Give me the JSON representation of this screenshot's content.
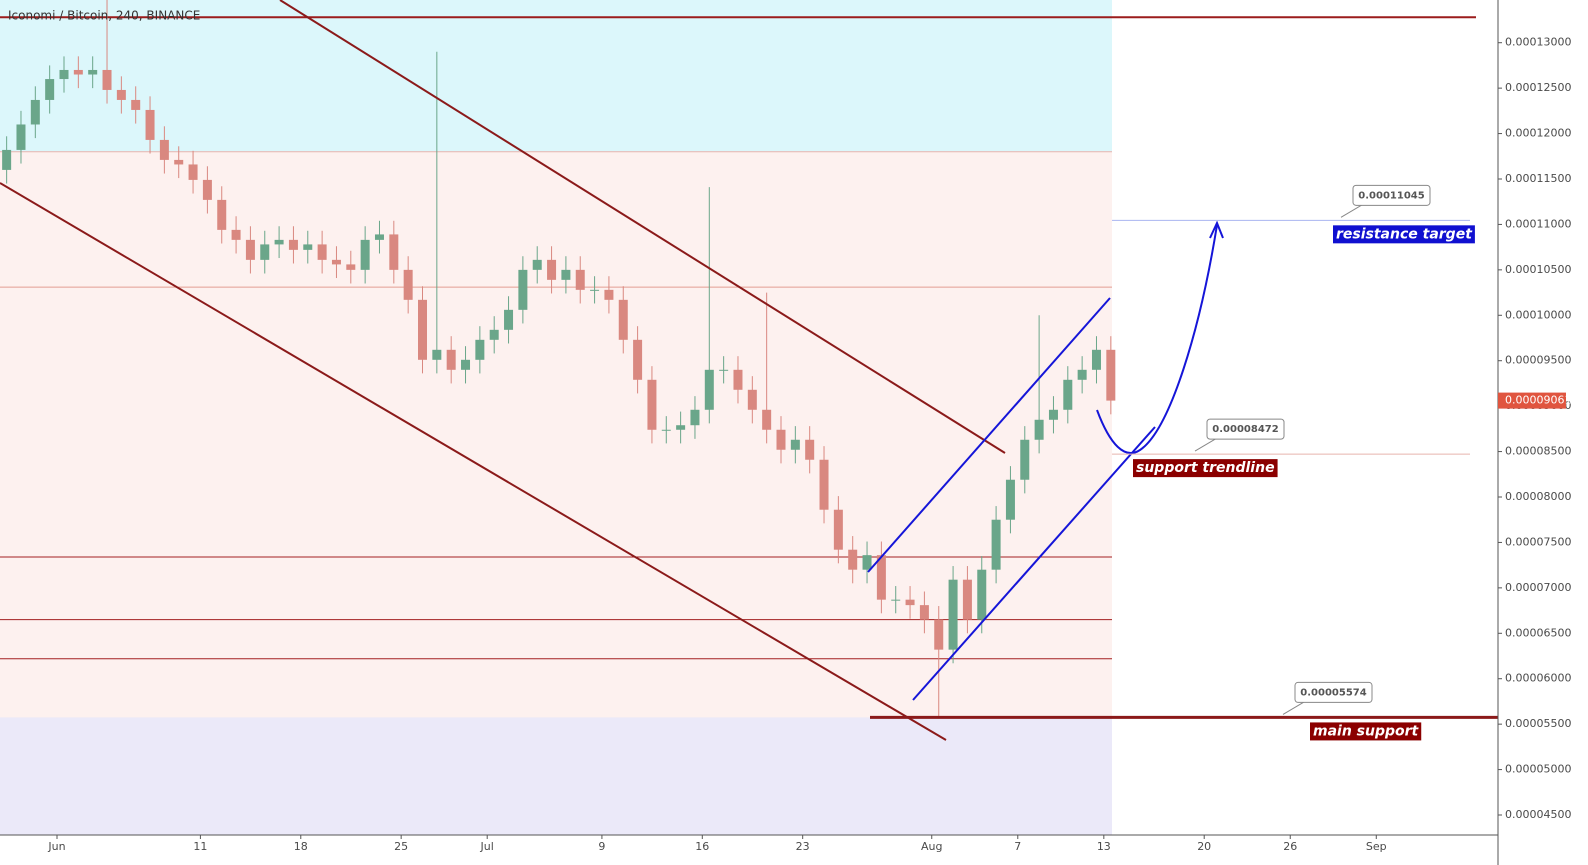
{
  "chart_data": {
    "type": "candlestick",
    "title": "Iconomi / Bitcoin, 240, BINANCE",
    "x": [
      "05-28",
      "05-29",
      "05-30",
      "05-31",
      "06-01",
      "06-02",
      "06-03",
      "06-04",
      "06-05",
      "06-06",
      "06-07",
      "06-08",
      "06-09",
      "06-10",
      "06-11",
      "06-12",
      "06-13",
      "06-14",
      "06-15",
      "06-16",
      "06-17",
      "06-18",
      "06-19",
      "06-20",
      "06-21",
      "06-22",
      "06-23",
      "06-24",
      "06-25",
      "06-26",
      "06-27",
      "06-28",
      "06-29",
      "06-30",
      "07-01",
      "07-02",
      "07-03",
      "07-04",
      "07-05",
      "07-06",
      "07-07",
      "07-08",
      "07-09",
      "07-10",
      "07-11",
      "07-12",
      "07-13",
      "07-14",
      "07-15",
      "07-16",
      "07-17",
      "07-18",
      "07-19",
      "07-20",
      "07-21",
      "07-22",
      "07-23",
      "07-24",
      "07-25",
      "07-26",
      "07-27",
      "07-28",
      "07-29",
      "07-30",
      "07-31",
      "08-01",
      "08-02",
      "08-03",
      "08-04",
      "08-05",
      "08-06",
      "08-07",
      "08-08",
      "08-09",
      "08-10",
      "08-11",
      "08-12",
      "08-13"
    ],
    "open": [
      0.000116,
      0.0001182,
      0.000121,
      0.0001237,
      0.000126,
      0.000127,
      0.0001265,
      0.000127,
      0.0001248,
      0.0001237,
      0.0001226,
      0.0001193,
      0.0001171,
      0.0001166,
      0.0001149,
      0.0001127,
      0.0001094,
      0.0001083,
      0.0001061,
      0.0001078,
      0.0001083,
      0.0001072,
      0.0001078,
      0.0001061,
      0.0001056,
      0.000105,
      0.0001083,
      0.0001089,
      0.000105,
      0.0001017,
      9.51e-05,
      9.62e-05,
      9.4e-05,
      9.51e-05,
      9.73e-05,
      9.84e-05,
      0.0001006,
      0.000105,
      0.0001061,
      0.0001039,
      0.000105,
      0.0001028,
      0.0001028,
      0.0001017,
      9.73e-05,
      9.29e-05,
      8.74e-05,
      8.74e-05,
      8.79e-05,
      8.96e-05,
      9.4e-05,
      9.4e-05,
      9.18e-05,
      8.96e-05,
      8.74e-05,
      8.52e-05,
      8.63e-05,
      8.41e-05,
      7.86e-05,
      7.42e-05,
      7.2e-05,
      7.36e-05,
      6.87e-05,
      6.87e-05,
      6.81e-05,
      6.65e-05,
      6.32e-05,
      7.09e-05,
      6.65e-05,
      7.2e-05,
      7.75e-05,
      8.19e-05,
      8.63e-05,
      8.85e-05,
      8.96e-05,
      9.29e-05,
      9.4e-05,
      9.62e-05
    ],
    "high": [
      0.0001197,
      0.0001225,
      0.0001252,
      0.0001275,
      0.0001285,
      0.0001285,
      0.0001285,
      0.0001347,
      0.0001263,
      0.0001252,
      0.0001241,
      0.0001208,
      0.0001186,
      0.0001181,
      0.0001164,
      0.0001142,
      0.0001109,
      0.0001098,
      0.0001093,
      0.0001098,
      0.0001098,
      0.0001093,
      0.0001093,
      0.0001076,
      0.0001071,
      0.0001098,
      0.0001104,
      0.0001104,
      0.0001065,
      0.0001032,
      0.000129,
      9.77e-05,
      9.66e-05,
      9.88e-05,
      9.99e-05,
      0.0001021,
      0.0001065,
      0.0001076,
      0.0001076,
      0.0001065,
      0.0001065,
      0.0001043,
      0.0001043,
      0.0001032,
      9.88e-05,
      9.44e-05,
      8.89e-05,
      8.94e-05,
      9.11e-05,
      0.0001141,
      9.55e-05,
      9.55e-05,
      9.33e-05,
      0.0001025,
      8.89e-05,
      8.78e-05,
      8.78e-05,
      8.56e-05,
      8.01e-05,
      7.57e-05,
      7.51e-05,
      7.51e-05,
      7.02e-05,
      7.02e-05,
      6.96e-05,
      6.8e-05,
      7.24e-05,
      7.24e-05,
      7.35e-05,
      7.9e-05,
      8.34e-05,
      8.78e-05,
      0.0001,
      9.11e-05,
      9.44e-05,
      9.55e-05,
      9.77e-05,
      9.77e-05
    ],
    "low": [
      0.0001145,
      0.0001167,
      0.0001195,
      0.0001222,
      0.0001245,
      0.000125,
      0.000125,
      0.0001233,
      0.0001222,
      0.0001211,
      0.0001178,
      0.0001156,
      0.0001151,
      0.0001134,
      0.0001112,
      0.0001079,
      0.0001068,
      0.0001046,
      0.0001046,
      0.0001063,
      0.0001057,
      0.0001057,
      0.0001046,
      0.0001041,
      0.0001035,
      0.0001035,
      0.0001068,
      0.0001035,
      0.0001002,
      9.36e-05,
      9.36e-05,
      9.25e-05,
      9.25e-05,
      9.36e-05,
      9.58e-05,
      9.69e-05,
      9.91e-05,
      0.0001035,
      0.0001024,
      0.0001024,
      0.0001013,
      0.0001013,
      0.0001002,
      9.58e-05,
      9.14e-05,
      8.59e-05,
      8.59e-05,
      8.59e-05,
      8.64e-05,
      8.81e-05,
      9.25e-05,
      9.03e-05,
      8.81e-05,
      8.59e-05,
      8.37e-05,
      8.37e-05,
      8.26e-05,
      7.71e-05,
      7.27e-05,
      7.05e-05,
      7.05e-05,
      6.72e-05,
      6.72e-05,
      6.66e-05,
      6.5e-05,
      5.57e-05,
      6.17e-05,
      6.5e-05,
      6.5e-05,
      7.05e-05,
      7.6e-05,
      8.04e-05,
      8.48e-05,
      8.7e-05,
      8.81e-05,
      9.14e-05,
      9.25e-05,
      8.91e-05
    ],
    "close": [
      0.0001182,
      0.000121,
      0.0001237,
      0.000126,
      0.000127,
      0.0001265,
      0.000127,
      0.0001248,
      0.0001237,
      0.0001226,
      0.0001193,
      0.0001171,
      0.0001166,
      0.0001149,
      0.0001127,
      0.0001094,
      0.0001083,
      0.0001061,
      0.0001078,
      0.0001083,
      0.0001072,
      0.0001078,
      0.0001061,
      0.0001056,
      0.000105,
      0.0001083,
      0.0001089,
      0.000105,
      0.0001017,
      9.51e-05,
      9.62e-05,
      9.4e-05,
      9.51e-05,
      9.73e-05,
      9.84e-05,
      0.0001006,
      0.000105,
      0.0001061,
      0.0001039,
      0.000105,
      0.0001028,
      0.0001028,
      0.0001017,
      9.73e-05,
      9.29e-05,
      8.74e-05,
      8.74e-05,
      8.79e-05,
      8.96e-05,
      9.4e-05,
      9.4e-05,
      9.18e-05,
      8.96e-05,
      8.74e-05,
      8.52e-05,
      8.63e-05,
      8.41e-05,
      7.86e-05,
      7.42e-05,
      7.2e-05,
      7.36e-05,
      6.87e-05,
      6.87e-05,
      6.81e-05,
      6.65e-05,
      6.32e-05,
      7.09e-05,
      6.65e-05,
      7.2e-05,
      7.75e-05,
      8.19e-05,
      8.63e-05,
      8.85e-05,
      8.96e-05,
      9.29e-05,
      9.4e-05,
      9.62e-05,
      9.061e-05
    ],
    "up_color": "#6aa68a",
    "down_color": "#d98880",
    "ylim": [
      4.28e-05,
      0.0001347
    ],
    "yticks": [
      {
        "value": 4.5e-05,
        "label": "0.00004500"
      },
      {
        "value": 5e-05,
        "label": "0.00005000"
      },
      {
        "value": 5.5e-05,
        "label": "0.00005500"
      },
      {
        "value": 6e-05,
        "label": "0.00006000"
      },
      {
        "value": 6.5e-05,
        "label": "0.00006500"
      },
      {
        "value": 7e-05,
        "label": "0.00007000"
      },
      {
        "value": 7.5e-05,
        "label": "0.00007500"
      },
      {
        "value": 8e-05,
        "label": "0.00008000"
      },
      {
        "value": 8.5e-05,
        "label": "0.00008500"
      },
      {
        "value": 9e-05,
        "label": "0.00009000"
      },
      {
        "value": 9.5e-05,
        "label": "0.00009500"
      },
      {
        "value": 0.0001,
        "label": "0.00010000"
      },
      {
        "value": 0.000105,
        "label": "0.00010500"
      },
      {
        "value": 0.00011,
        "label": "0.00011000"
      },
      {
        "value": 0.000115,
        "label": "0.00011500"
      },
      {
        "value": 0.00012,
        "label": "0.00012000"
      },
      {
        "value": 0.000125,
        "label": "0.00012500"
      },
      {
        "value": 0.00013,
        "label": "0.00013000"
      }
    ],
    "xticks": [
      {
        "value": "06-01",
        "label": "Jun"
      },
      {
        "value": "06-11",
        "label": "11"
      },
      {
        "value": "06-18",
        "label": "18"
      },
      {
        "value": "06-25",
        "label": "25"
      },
      {
        "value": "07-01",
        "label": "Jul"
      },
      {
        "value": "07-09",
        "label": "9"
      },
      {
        "value": "07-16",
        "label": "16"
      },
      {
        "value": "07-23",
        "label": "23"
      },
      {
        "value": "08-01",
        "label": "Aug"
      },
      {
        "value": "08-07",
        "label": "7"
      },
      {
        "value": "08-13",
        "label": "13"
      },
      {
        "value": "08-20",
        "label": "20"
      },
      {
        "value": "08-26",
        "label": "26"
      },
      {
        "value": "09-01",
        "label": "Sep"
      }
    ],
    "levels": [
      {
        "value": 0.0001328,
        "color": "#9b1c1c"
      },
      {
        "value": 0.000118,
        "color": "#e8b4ae"
      },
      {
        "value": 0.0001031,
        "color": "#e39c92"
      },
      {
        "value": 7.34e-05,
        "color": "#a32020"
      },
      {
        "value": 6.65e-05,
        "color": "#a32020"
      },
      {
        "value": 6.22e-05,
        "color": "#a32020"
      }
    ],
    "callouts": [
      {
        "value": 0.00011045,
        "label": "resistance target",
        "line_color": "#aab4f0",
        "label_color": "#1010d0"
      },
      {
        "value": 8.472e-05,
        "label": "support trendline",
        "line_color": "#e8b4ae",
        "label_color": "#8b0000"
      },
      {
        "value": 5.574e-05,
        "label": "main support",
        "line_color": "#8b1a1a",
        "label_color": "#8b0000"
      }
    ],
    "last_price": {
      "value": 9.061e-05,
      "color": "#e0553f"
    }
  }
}
